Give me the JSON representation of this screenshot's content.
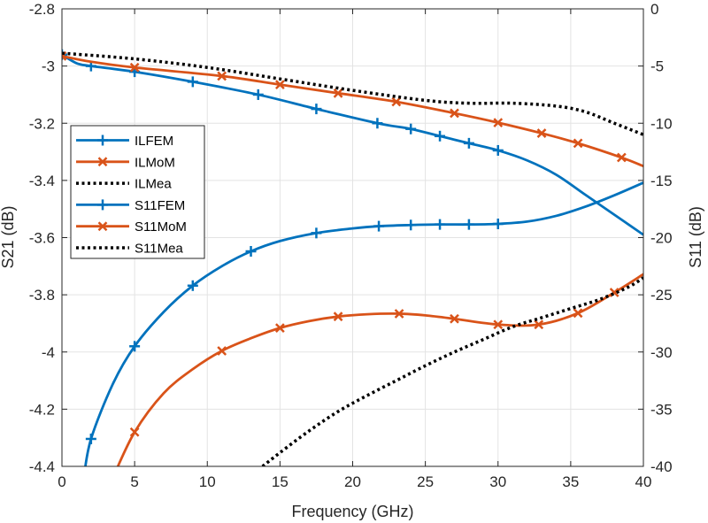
{
  "chart_data": {
    "type": "line",
    "title": "",
    "xlabel": "Frequency (GHz)",
    "ylabel_left": "S21 (dB)",
    "ylabel_right": "S11 (dB)",
    "xlim": [
      0,
      40
    ],
    "ylim_left": [
      -4.4,
      -2.8
    ],
    "ylim_right": [
      -40,
      0
    ],
    "grid": true,
    "legend_position": "left-middle",
    "x_ticks": [
      "0",
      "5",
      "10",
      "15",
      "20",
      "25",
      "30",
      "35",
      "40"
    ],
    "y_left_ticks": [
      "-2.8",
      "-3",
      "-3.2",
      "-3.4",
      "-3.6",
      "-3.8",
      "-4",
      "-4.2",
      "-4.4"
    ],
    "y_right_ticks": [
      "0",
      "-5",
      "-10",
      "-15",
      "-20",
      "-25",
      "-30",
      "-35",
      "-40"
    ],
    "series": [
      {
        "name": "ILFEM",
        "axis": "left",
        "color": "#0072BD",
        "style": "solid",
        "marker": "plus",
        "x": [
          0,
          1,
          2,
          5,
          9,
          13.5,
          17.5,
          21.7,
          24,
          26,
          28,
          30,
          32,
          34,
          36,
          38,
          40
        ],
        "y": [
          -2.96,
          -2.99,
          -3.0,
          -3.02,
          -3.055,
          -3.1,
          -3.15,
          -3.2,
          -3.22,
          -3.245,
          -3.27,
          -3.295,
          -3.33,
          -3.38,
          -3.45,
          -3.52,
          -3.59
        ],
        "marker_x": [
          0,
          2,
          5,
          9,
          13.5,
          17.5,
          21.7,
          24,
          26,
          28,
          30
        ]
      },
      {
        "name": "ILMoM",
        "axis": "left",
        "color": "#D95319",
        "style": "solid",
        "marker": "x",
        "x": [
          0,
          2,
          5,
          11,
          15,
          19,
          23,
          27,
          30,
          33,
          35.5,
          38.5,
          40
        ],
        "y": [
          -2.965,
          -2.985,
          -3.005,
          -3.035,
          -3.065,
          -3.095,
          -3.125,
          -3.165,
          -3.198,
          -3.235,
          -3.27,
          -3.32,
          -3.35
        ],
        "marker_x": [
          0,
          5,
          11,
          15,
          19,
          23,
          27,
          30,
          33,
          35.5,
          38.5
        ]
      },
      {
        "name": "ILMea",
        "axis": "left",
        "color": "#000000",
        "style": "dotted",
        "marker": "none",
        "x": [
          0,
          5,
          10,
          15,
          20,
          25,
          28,
          31,
          34,
          36,
          38,
          40
        ],
        "y": [
          -2.955,
          -2.975,
          -3.005,
          -3.045,
          -3.085,
          -3.12,
          -3.13,
          -3.13,
          -3.14,
          -3.16,
          -3.2,
          -3.24
        ],
        "marker_x": []
      },
      {
        "name": "S11FEM",
        "axis": "right",
        "color": "#0072BD",
        "style": "solid",
        "marker": "plus",
        "x": [
          1.5,
          2,
          3.5,
          5,
          7,
          9,
          11,
          13,
          15,
          17.5,
          20,
          21.8,
          24,
          26,
          28,
          30,
          32,
          34,
          36,
          38,
          40
        ],
        "y": [
          -41,
          -37.6,
          -32.8,
          -29.5,
          -26.5,
          -24.2,
          -22.5,
          -21.2,
          -20.3,
          -19.6,
          -19.2,
          -19.0,
          -18.9,
          -18.85,
          -18.85,
          -18.8,
          -18.6,
          -18.1,
          -17.3,
          -16.3,
          -15.2
        ],
        "marker_x": [
          2,
          5,
          9,
          13,
          17.5,
          21.8,
          24,
          26,
          28,
          30
        ]
      },
      {
        "name": "S11MoM",
        "axis": "right",
        "color": "#D95319",
        "style": "solid",
        "marker": "x",
        "x": [
          3.5,
          5,
          7,
          9,
          11,
          13,
          15,
          17,
          19,
          21,
          23.2,
          25,
          27,
          30,
          32.8,
          35.5,
          38,
          40
        ],
        "y": [
          -41,
          -37,
          -33.6,
          -31.5,
          -29.9,
          -28.8,
          -27.9,
          -27.3,
          -26.9,
          -26.7,
          -26.65,
          -26.8,
          -27.1,
          -27.6,
          -27.6,
          -26.6,
          -24.8,
          -23.2
        ],
        "marker_x": [
          5,
          11,
          15,
          19,
          23.2,
          27,
          30,
          32.8,
          35.5,
          38
        ]
      },
      {
        "name": "S11Mea",
        "axis": "right",
        "color": "#000000",
        "style": "dotted",
        "marker": "none",
        "x": [
          13.8,
          15,
          17,
          19,
          21,
          23,
          25,
          27,
          29,
          31,
          33,
          35,
          37,
          39,
          40
        ],
        "y": [
          -40,
          -38.8,
          -36.9,
          -35.2,
          -33.8,
          -32.5,
          -31.2,
          -30.0,
          -28.9,
          -27.8,
          -27.0,
          -26.2,
          -25.4,
          -24.3,
          -23.5
        ],
        "marker_x": []
      }
    ]
  }
}
